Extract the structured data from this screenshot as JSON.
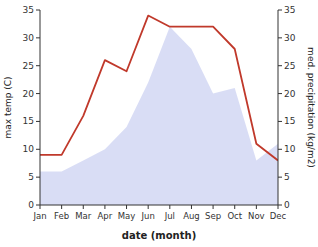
{
  "chart_data": {
    "type": "line",
    "categories": [
      "Jan",
      "Feb",
      "Mar",
      "Apr",
      "May",
      "Jun",
      "Jul",
      "Aug",
      "Sep",
      "Oct",
      "Nov",
      "Dec"
    ],
    "series": [
      {
        "type": "area",
        "color": "#aab4e8",
        "axis": "y2",
        "values": [
          6,
          6,
          8,
          10,
          14,
          22,
          32,
          28,
          20,
          21,
          8,
          11
        ]
      },
      {
        "type": "line",
        "color": "#c0392b",
        "values": [
          9,
          9,
          16,
          26,
          24,
          34,
          32,
          32,
          32,
          28,
          11,
          8
        ]
      }
    ],
    "xlabel": "date (month)",
    "ylabel": "max temp (C)",
    "y2label": "med. precipitation (kg/m2)",
    "ylim": [
      0,
      35
    ],
    "yticks": [
      0,
      5,
      10,
      15,
      20,
      25,
      30,
      35
    ],
    "y2lim": [
      0,
      35
    ],
    "y2ticks": [
      0,
      5,
      10,
      15,
      20,
      25,
      30,
      35
    ],
    "grid": false
  }
}
